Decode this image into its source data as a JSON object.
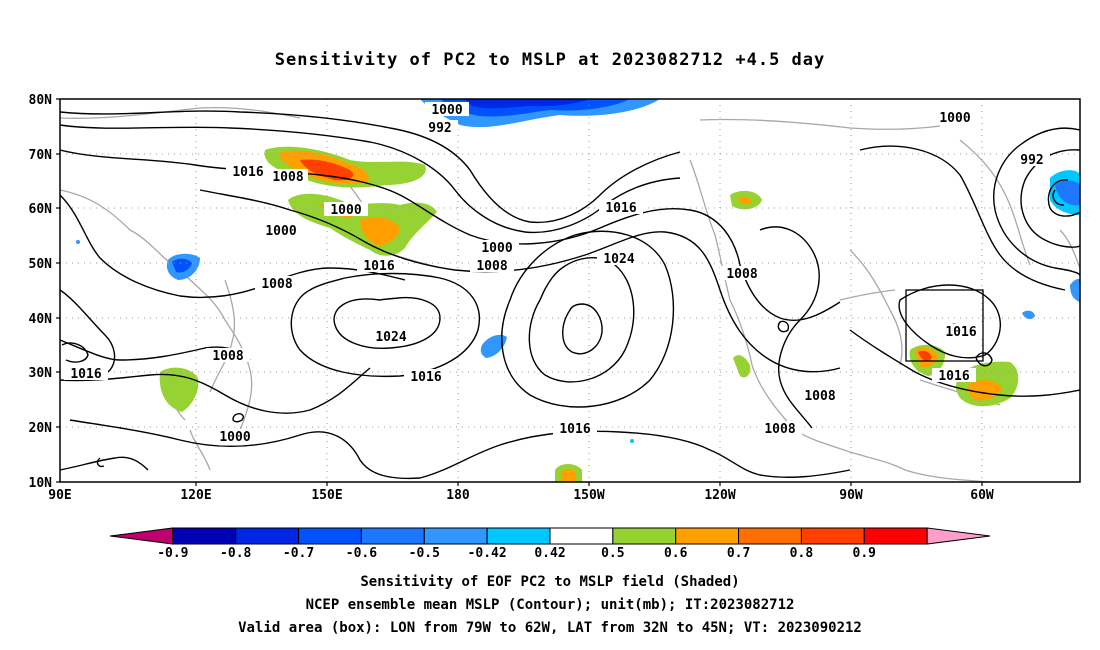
{
  "title": "Sensitivity of PC2 to MSLP at 2023082712 +4.5 day",
  "map": {
    "lat_labels": [
      "80N",
      "70N",
      "60N",
      "50N",
      "40N",
      "30N",
      "20N",
      "10N"
    ],
    "lon_labels": [
      "90E",
      "120E",
      "150E",
      "180",
      "150W",
      "120W",
      "90W",
      "60W"
    ],
    "contour_labels": [
      {
        "text": "1000"
      },
      {
        "text": "992"
      },
      {
        "text": "1016"
      },
      {
        "text": "1008"
      },
      {
        "text": "1000"
      },
      {
        "text": "1000"
      },
      {
        "text": "1016"
      },
      {
        "text": "1000"
      },
      {
        "text": "1008"
      },
      {
        "text": "1016"
      },
      {
        "text": "1008"
      },
      {
        "text": "1024"
      },
      {
        "text": "1024"
      },
      {
        "text": "1008"
      },
      {
        "text": "1016"
      },
      {
        "text": "1016"
      },
      {
        "text": "1000"
      },
      {
        "text": "1016"
      },
      {
        "text": "1008"
      },
      {
        "text": "1008"
      },
      {
        "text": "1008"
      },
      {
        "text": "1000"
      },
      {
        "text": "992"
      },
      {
        "text": "1016"
      },
      {
        "text": "1016"
      }
    ],
    "valid_box": {
      "lon_from": "79W",
      "lon_to": "62W",
      "lat_from": "32N",
      "lat_to": "45N"
    }
  },
  "colorbar": {
    "labels": [
      "-0.9",
      "-0.8",
      "-0.7",
      "-0.6",
      "-0.5",
      "-0.42",
      "0.42",
      "0.5",
      "0.6",
      "0.7",
      "0.8",
      "0.9"
    ],
    "colors": [
      "#c00070",
      "#0000b4",
      "#0026e6",
      "#0052ff",
      "#1e78ff",
      "#3296ff",
      "#00c8ff",
      "#ffffff",
      "#96d232",
      "#ffa000",
      "#ff7000",
      "#ff4000",
      "#ff0000",
      "#ff9ec8"
    ]
  },
  "captions": [
    "Sensitivity of EOF PC2 to MSLP field (Shaded)",
    "NCEP ensemble mean MSLP (Contour); unit(mb); IT:2023082712",
    "Valid area (box): LON from 79W to 62W, LAT from 32N to 45N; VT: 2023090212"
  ]
}
